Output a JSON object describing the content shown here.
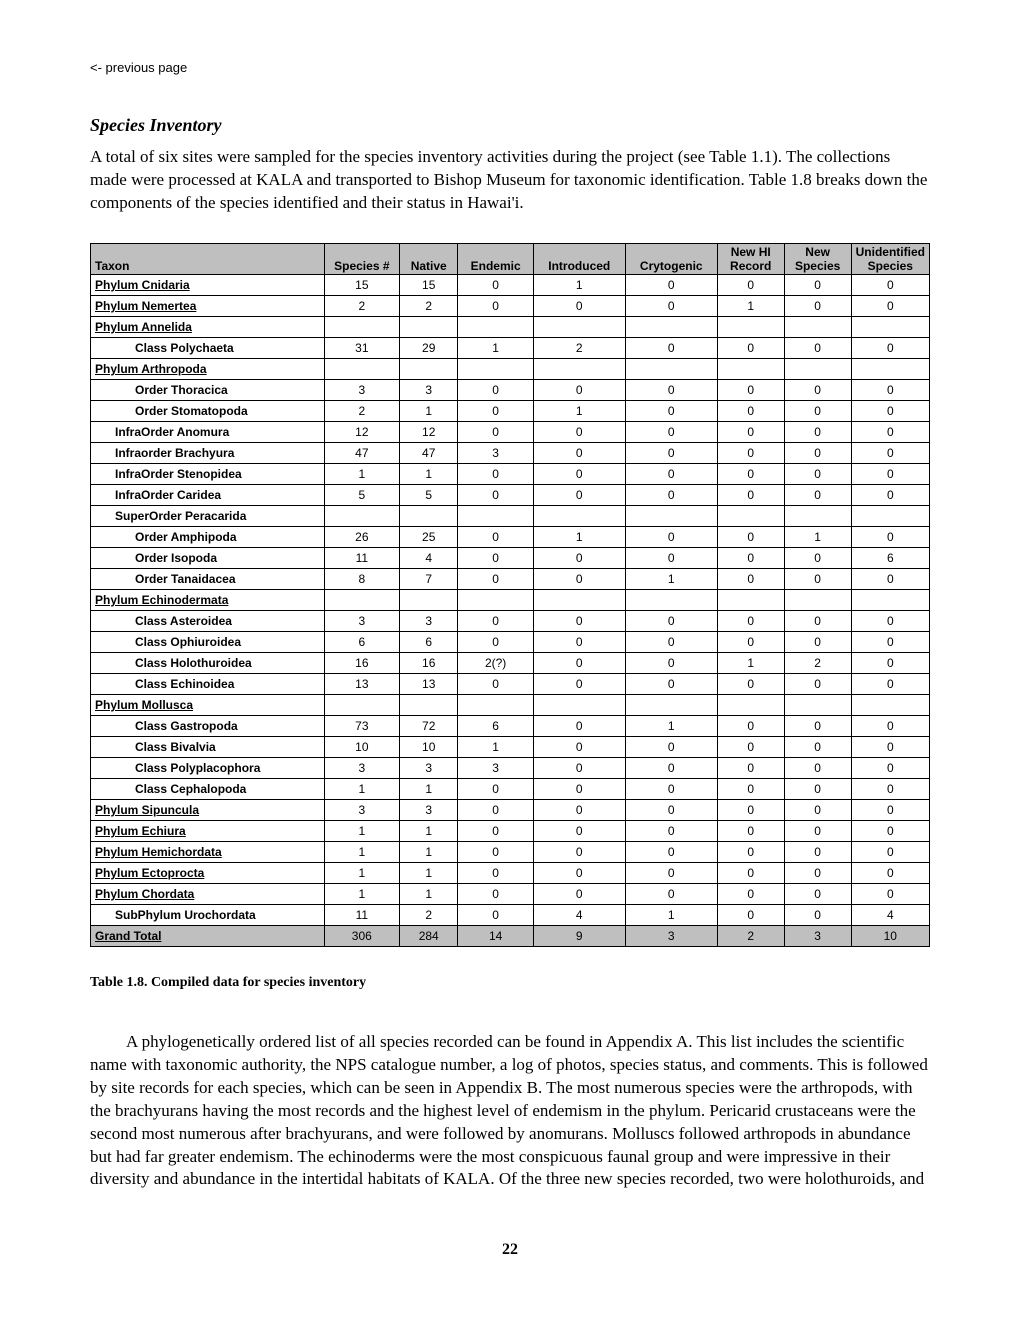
{
  "nav": {
    "prev": "<-  previous page"
  },
  "section_title": "Species Inventory",
  "intro": "A total of six sites were sampled for the species inventory activities during the project (see Table 1.1). The collections made were processed at KALA and transported to Bishop Museum for taxonomic identification. Table 1.8 breaks down the components of the species identified and their status in Hawai'i.",
  "table": {
    "columns": [
      "Taxon",
      "Species #",
      "Native",
      "Endemic",
      "Introduced",
      "Crytogenic",
      "New HI Record",
      "New Species",
      "Unidentified Species"
    ],
    "col_widths": [
      "28%",
      "9%",
      "7%",
      "9%",
      "11%",
      "11%",
      "8%",
      "8%",
      "11%"
    ],
    "header_two_line": [
      false,
      false,
      false,
      false,
      false,
      false,
      true,
      true,
      true
    ],
    "header_line1": [
      "",
      "",
      "",
      "",
      "",
      "",
      "New HI",
      "New",
      "Unidentified"
    ],
    "header_line2": [
      "Taxon",
      "Species #",
      "Native",
      "Endemic",
      "Introduced",
      "Crytogenic",
      "Record",
      "Species",
      "Species"
    ],
    "background_header": "#bfbfbf",
    "rows": [
      {
        "taxon": "Phylum Cnidaria",
        "indent": 0,
        "ul": true,
        "vals": [
          "15",
          "15",
          "0",
          "1",
          "0",
          "0",
          "0",
          "0"
        ]
      },
      {
        "taxon": "Phylum Nemertea",
        "indent": 0,
        "ul": true,
        "vals": [
          "2",
          "2",
          "0",
          "0",
          "0",
          "1",
          "0",
          "0"
        ]
      },
      {
        "taxon": "Phylum Annelida",
        "indent": 0,
        "ul": true,
        "vals": [
          "",
          "",
          "",
          "",
          "",
          "",
          "",
          ""
        ]
      },
      {
        "taxon": "Class Polychaeta",
        "indent": 2,
        "ul": false,
        "vals": [
          "31",
          "29",
          "1",
          "2",
          "0",
          "0",
          "0",
          "0"
        ]
      },
      {
        "taxon": "Phylum Arthropoda",
        "indent": 0,
        "ul": true,
        "vals": [
          "",
          "",
          "",
          "",
          "",
          "",
          "",
          ""
        ]
      },
      {
        "taxon": "Order Thoracica",
        "indent": 2,
        "ul": false,
        "vals": [
          "3",
          "3",
          "0",
          "0",
          "0",
          "0",
          "0",
          "0"
        ]
      },
      {
        "taxon": "Order Stomatopoda",
        "indent": 2,
        "ul": false,
        "vals": [
          "2",
          "1",
          "0",
          "1",
          "0",
          "0",
          "0",
          "0"
        ]
      },
      {
        "taxon": "InfraOrder Anomura",
        "indent": 1,
        "ul": false,
        "vals": [
          "12",
          "12",
          "0",
          "0",
          "0",
          "0",
          "0",
          "0"
        ]
      },
      {
        "taxon": "Infraorder Brachyura",
        "indent": 1,
        "ul": false,
        "vals": [
          "47",
          "47",
          "3",
          "0",
          "0",
          "0",
          "0",
          "0"
        ]
      },
      {
        "taxon": "InfraOrder Stenopidea",
        "indent": 1,
        "ul": false,
        "vals": [
          "1",
          "1",
          "0",
          "0",
          "0",
          "0",
          "0",
          "0"
        ]
      },
      {
        "taxon": "InfraOrder Caridea",
        "indent": 1,
        "ul": false,
        "vals": [
          "5",
          "5",
          "0",
          "0",
          "0",
          "0",
          "0",
          "0"
        ]
      },
      {
        "taxon": "SuperOrder Peracarida",
        "indent": 1,
        "ul": false,
        "vals": [
          "",
          "",
          "",
          "",
          "",
          "",
          "",
          ""
        ]
      },
      {
        "taxon": "Order Amphipoda",
        "indent": 2,
        "ul": false,
        "vals": [
          "26",
          "25",
          "0",
          "1",
          "0",
          "0",
          "1",
          "0"
        ]
      },
      {
        "taxon": "Order Isopoda",
        "indent": 2,
        "ul": false,
        "vals": [
          "11",
          "4",
          "0",
          "0",
          "0",
          "0",
          "0",
          "6"
        ]
      },
      {
        "taxon": "Order Tanaidacea",
        "indent": 2,
        "ul": false,
        "vals": [
          "8",
          "7",
          "0",
          "0",
          "1",
          "0",
          "0",
          "0"
        ]
      },
      {
        "taxon": "Phylum Echinodermata",
        "indent": 0,
        "ul": true,
        "vals": [
          "",
          "",
          "",
          "",
          "",
          "",
          "",
          ""
        ]
      },
      {
        "taxon": "Class Asteroidea",
        "indent": 2,
        "ul": false,
        "vals": [
          "3",
          "3",
          "0",
          "0",
          "0",
          "0",
          "0",
          "0"
        ]
      },
      {
        "taxon": "Class Ophiuroidea",
        "indent": 2,
        "ul": false,
        "vals": [
          "6",
          "6",
          "0",
          "0",
          "0",
          "0",
          "0",
          "0"
        ]
      },
      {
        "taxon": "Class Holothuroidea",
        "indent": 2,
        "ul": false,
        "vals": [
          "16",
          "16",
          "2(?)",
          "0",
          "0",
          "1",
          "2",
          "0"
        ]
      },
      {
        "taxon": "Class Echinoidea",
        "indent": 2,
        "ul": false,
        "vals": [
          "13",
          "13",
          "0",
          "0",
          "0",
          "0",
          "0",
          "0"
        ]
      },
      {
        "taxon": "Phylum Mollusca",
        "indent": 0,
        "ul": true,
        "vals": [
          "",
          "",
          "",
          "",
          "",
          "",
          "",
          ""
        ]
      },
      {
        "taxon": "Class Gastropoda",
        "indent": 2,
        "ul": false,
        "vals": [
          "73",
          "72",
          "6",
          "0",
          "1",
          "0",
          "0",
          "0"
        ]
      },
      {
        "taxon": "Class Bivalvia",
        "indent": 2,
        "ul": false,
        "vals": [
          "10",
          "10",
          "1",
          "0",
          "0",
          "0",
          "0",
          "0"
        ]
      },
      {
        "taxon": "Class Polyplacophora",
        "indent": 2,
        "ul": false,
        "vals": [
          "3",
          "3",
          "3",
          "0",
          "0",
          "0",
          "0",
          "0"
        ]
      },
      {
        "taxon": "Class Cephalopoda",
        "indent": 2,
        "ul": false,
        "vals": [
          "1",
          "1",
          "0",
          "0",
          "0",
          "0",
          "0",
          "0"
        ]
      },
      {
        "taxon": "Phylum Sipuncula",
        "indent": 0,
        "ul": true,
        "vals": [
          "3",
          "3",
          "0",
          "0",
          "0",
          "0",
          "0",
          "0"
        ]
      },
      {
        "taxon": "Phylum Echiura",
        "indent": 0,
        "ul": true,
        "vals": [
          "1",
          "1",
          "0",
          "0",
          "0",
          "0",
          "0",
          "0"
        ]
      },
      {
        "taxon": "Phylum Hemichordata",
        "indent": 0,
        "ul": true,
        "vals": [
          "1",
          "1",
          "0",
          "0",
          "0",
          "0",
          "0",
          "0"
        ]
      },
      {
        "taxon": "Phylum Ectoprocta",
        "indent": 0,
        "ul": true,
        "vals": [
          "1",
          "1",
          "0",
          "0",
          "0",
          "0",
          "0",
          "0"
        ]
      },
      {
        "taxon": "Phylum Chordata",
        "indent": 0,
        "ul": true,
        "vals": [
          "1",
          "1",
          "0",
          "0",
          "0",
          "0",
          "0",
          "0"
        ]
      },
      {
        "taxon": "SubPhylum Urochordata",
        "indent": 1,
        "ul": false,
        "vals": [
          "11",
          "2",
          "0",
          "4",
          "1",
          "0",
          "0",
          "4"
        ]
      }
    ],
    "total": {
      "taxon": "Grand Total",
      "vals": [
        "306",
        "284",
        "14",
        "9",
        "3",
        "2",
        "3",
        "10"
      ]
    }
  },
  "table_caption": "Table 1.8. Compiled data for species inventory",
  "para2": "A phylogenetically ordered list of all species recorded can be found in Appendix A. This list includes the scientific name with taxonomic authority, the NPS catalogue number, a log of photos, species status, and comments. This is followed by site records for each species, which can be seen in Appendix B. The most numerous species were the arthropods, with the brachyurans having the most records and the highest level of endemism in the phylum. Pericarid crustaceans were the second most numerous after brachyurans, and were followed by anomurans. Molluscs followed arthropods in abundance but had far greater endemism. The echinoderms were the most conspicuous faunal group and were impressive in their diversity and abundance in the intertidal habitats of KALA. Of the three new species recorded, two were holothuroids, and",
  "page_number": "22"
}
